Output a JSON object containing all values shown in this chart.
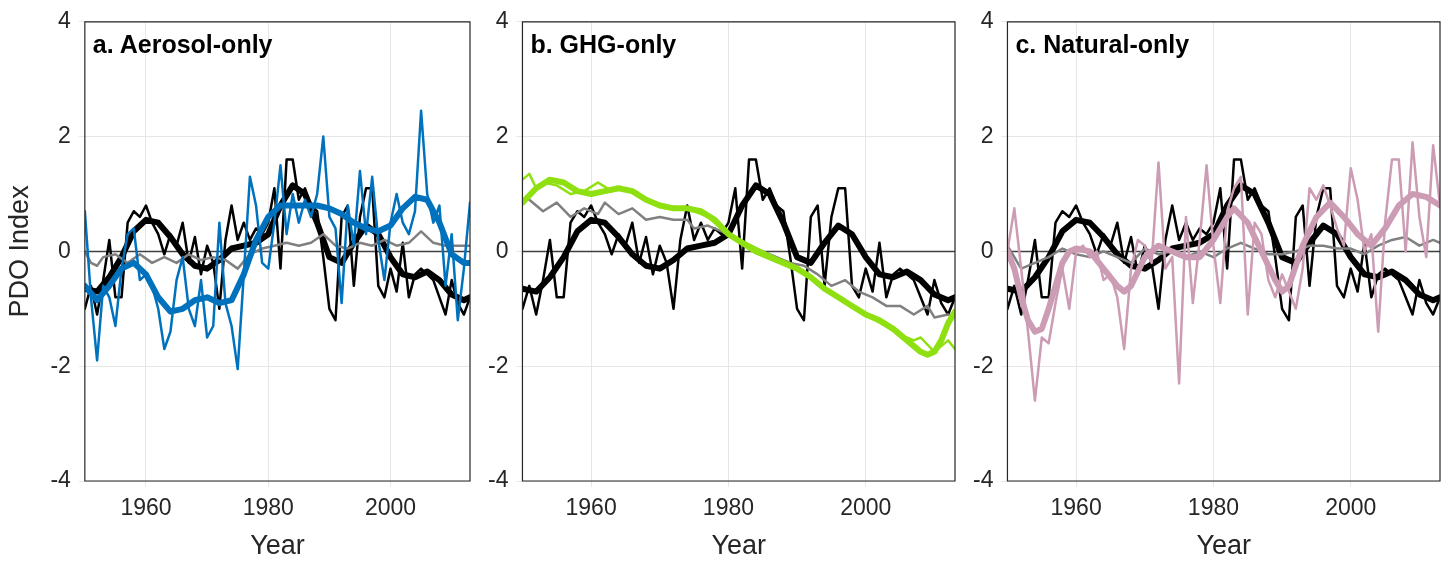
{
  "chart_data": [
    {
      "type": "line",
      "title": "a. Aerosol-only",
      "xlabel": "Year",
      "ylabel": "PDO Index",
      "x": [
        1950,
        1951,
        1952,
        1953,
        1954,
        1955,
        1956,
        1957,
        1958,
        1959,
        1960,
        1961,
        1962,
        1963,
        1964,
        1965,
        1966,
        1967,
        1968,
        1969,
        1970,
        1971,
        1972,
        1973,
        1974,
        1975,
        1976,
        1977,
        1978,
        1979,
        1980,
        1981,
        1982,
        1983,
        1984,
        1985,
        1986,
        1987,
        1988,
        1989,
        1990,
        1991,
        1992,
        1993,
        1994,
        1995,
        1996,
        1997,
        1998,
        1999,
        2000,
        2001,
        2002,
        2003,
        2004,
        2005,
        2006,
        2007,
        2008,
        2009,
        2010,
        2011,
        2012,
        2013
      ],
      "xlim": [
        1950,
        2013
      ],
      "xticks": [
        1960,
        1980,
        2000
      ],
      "ylim": [
        -4,
        4
      ],
      "yticks": [
        -4,
        -2,
        0,
        2,
        4
      ],
      "grid": true,
      "ref_lines": [
        {
          "axis": "y",
          "value": 0,
          "color": "#404040"
        }
      ],
      "series": [
        {
          "color": "#000000",
          "values": [
            -1.0,
            -0.6,
            -1.1,
            -0.5,
            0.2,
            -0.8,
            -0.8,
            0.5,
            0.7,
            0.6,
            0.8,
            0.5,
            0.3,
            -0.05,
            0.3,
            0.1,
            0.5,
            -0.2,
            0.25,
            -0.4,
            0.1,
            -0.2,
            -1.0,
            0.2,
            0.8,
            0.2,
            0.5,
            0.2,
            0.4,
            0.3,
            0.5,
            1.1,
            -0.3,
            1.6,
            1.6,
            0.9,
            1.1,
            0.8,
            0.7,
            -0.1,
            -1.0,
            -1.2,
            0.6,
            0.8,
            -0.6,
            0.6,
            1.1,
            1.1,
            -0.6,
            -0.8,
            -0.3,
            -0.7,
            0.15,
            -0.8,
            -0.4,
            -0.3,
            -0.4,
            -0.5,
            -0.8,
            -1.1,
            -0.5,
            -0.9,
            -1.1,
            -0.8
          ]
        },
        {
          "color": "#000000",
          "x": [
            1950,
            1952,
            1954,
            1956,
            1958,
            1960,
            1962,
            1964,
            1966,
            1968,
            1970,
            1972,
            1974,
            1976,
            1978,
            1980,
            1982,
            1984,
            1986,
            1988,
            1990,
            1992,
            1994,
            1996,
            1998,
            2000,
            2002,
            2004,
            2006,
            2008,
            2010,
            2012,
            2013
          ],
          "values": [
            -0.65,
            -0.7,
            -0.45,
            -0.1,
            0.35,
            0.55,
            0.5,
            0.25,
            -0.05,
            -0.25,
            -0.3,
            -0.15,
            0.05,
            0.1,
            0.15,
            0.3,
            0.8,
            1.15,
            1.0,
            0.5,
            -0.1,
            -0.2,
            0.15,
            0.45,
            0.3,
            -0.1,
            -0.4,
            -0.45,
            -0.35,
            -0.5,
            -0.75,
            -0.85,
            -0.8
          ]
        },
        {
          "color": "#808080",
          "x": [
            1950,
            1951,
            1952,
            1953,
            1955,
            1957,
            1959,
            1961,
            1963,
            1965,
            1967,
            1969,
            1971,
            1973,
            1975,
            1977,
            1979,
            1981,
            1983,
            1985,
            1987,
            1989,
            1991,
            1993,
            1995,
            1997,
            1999,
            2001,
            2003,
            2005,
            2007,
            2009,
            2011,
            2013
          ],
          "values": [
            0,
            -0.2,
            -0.25,
            -0.1,
            -0.05,
            -0.2,
            -0.05,
            -0.2,
            -0.1,
            -0.2,
            -0.05,
            -0.15,
            -0.1,
            -0.15,
            -0.3,
            -0.05,
            0.05,
            0.1,
            0.15,
            0.1,
            0.15,
            0.3,
            0.1,
            0.05,
            0.15,
            0.1,
            0.2,
            0.1,
            0.15,
            0.35,
            0.15,
            0.1,
            0.1,
            0.1
          ]
        },
        {
          "color": "#0072bd",
          "values": [
            0.7,
            -0.8,
            -1.9,
            -0.6,
            -0.8,
            -1.3,
            -0.3,
            0.3,
            0.4,
            -0.5,
            -0.4,
            -0.6,
            -1.0,
            -1.7,
            -1.4,
            -0.5,
            -0.1,
            -1.0,
            -1.3,
            -0.5,
            -1.5,
            -1.3,
            0.5,
            -0.9,
            -1.3,
            -2.05,
            -0.4,
            1.3,
            0.8,
            -0.2,
            -0.3,
            0.5,
            1.5,
            0.3,
            1.0,
            0.5,
            0.9,
            0.6,
            1.0,
            2.0,
            0.6,
            0.4,
            -0.9,
            0.8,
            0.1,
            1.4,
            0.3,
            1.3,
            0.2,
            -0.5,
            0.5,
            1.0,
            0.5,
            0.3,
            0.7,
            2.45,
            1.0,
            0.5,
            0.8,
            -0.6,
            0.3,
            -1.2,
            -0.3,
            0.85
          ]
        },
        {
          "color": "#0072bd",
          "x": [
            1950,
            1952,
            1954,
            1956,
            1958,
            1960,
            1962,
            1964,
            1966,
            1968,
            1970,
            1972,
            1974,
            1976,
            1978,
            1980,
            1982,
            1984,
            1986,
            1988,
            1990,
            1992,
            1994,
            1996,
            1998,
            2000,
            2002,
            2004,
            2006,
            2008,
            2010,
            2012,
            2013
          ],
          "values": [
            -0.6,
            -0.85,
            -0.6,
            -0.3,
            -0.2,
            -0.4,
            -0.8,
            -1.05,
            -1.0,
            -0.85,
            -0.8,
            -0.9,
            -0.85,
            -0.4,
            0.2,
            0.6,
            0.8,
            0.8,
            0.8,
            0.8,
            0.75,
            0.65,
            0.5,
            0.4,
            0.35,
            0.45,
            0.75,
            0.95,
            0.9,
            0.5,
            -0.05,
            -0.2,
            -0.2
          ]
        }
      ]
    },
    {
      "type": "line",
      "title": "b. GHG-only",
      "xlabel": "Year",
      "x": [
        1950,
        1951,
        1952,
        1953,
        1954,
        1955,
        1956,
        1957,
        1958,
        1959,
        1960,
        1961,
        1962,
        1963,
        1964,
        1965,
        1966,
        1967,
        1968,
        1969,
        1970,
        1971,
        1972,
        1973,
        1974,
        1975,
        1976,
        1977,
        1978,
        1979,
        1980,
        1981,
        1982,
        1983,
        1984,
        1985,
        1986,
        1987,
        1988,
        1989,
        1990,
        1991,
        1992,
        1993,
        1994,
        1995,
        1996,
        1997,
        1998,
        1999,
        2000,
        2001,
        2002,
        2003,
        2004,
        2005,
        2006,
        2007,
        2008,
        2009,
        2010,
        2011,
        2012,
        2013
      ],
      "xlim": [
        1950,
        2013
      ],
      "xticks": [
        1960,
        1980,
        2000
      ],
      "ylim": [
        -4,
        4
      ],
      "yticks": [
        -4,
        -2,
        0,
        2,
        4
      ],
      "grid": true,
      "ref_lines": [
        {
          "axis": "y",
          "value": 0,
          "color": "#404040"
        }
      ],
      "series": [
        {
          "color": "#000000",
          "values": [
            -1.0,
            -0.6,
            -1.1,
            -0.5,
            0.2,
            -0.8,
            -0.8,
            0.5,
            0.7,
            0.6,
            0.8,
            0.5,
            0.3,
            -0.05,
            0.3,
            0.1,
            0.5,
            -0.2,
            0.25,
            -0.4,
            0.1,
            -0.2,
            -1.0,
            0.2,
            0.8,
            0.2,
            0.5,
            0.2,
            0.4,
            0.3,
            0.5,
            1.1,
            -0.3,
            1.6,
            1.6,
            0.9,
            1.1,
            0.8,
            0.7,
            -0.1,
            -1.0,
            -1.2,
            0.6,
            0.8,
            -0.6,
            0.6,
            1.1,
            1.1,
            -0.6,
            -0.8,
            -0.3,
            -0.7,
            0.15,
            -0.8,
            -0.4,
            -0.3,
            -0.4,
            -0.5,
            -0.8,
            -1.1,
            -0.5,
            -0.9,
            -1.1,
            -0.8
          ]
        },
        {
          "color": "#000000",
          "x": [
            1950,
            1952,
            1954,
            1956,
            1958,
            1960,
            1962,
            1964,
            1966,
            1968,
            1970,
            1972,
            1974,
            1976,
            1978,
            1980,
            1982,
            1984,
            1986,
            1988,
            1990,
            1992,
            1994,
            1996,
            1998,
            2000,
            2002,
            2004,
            2006,
            2008,
            2010,
            2012,
            2013
          ],
          "values": [
            -0.65,
            -0.7,
            -0.45,
            -0.1,
            0.35,
            0.55,
            0.5,
            0.25,
            -0.05,
            -0.25,
            -0.3,
            -0.15,
            0.05,
            0.1,
            0.15,
            0.3,
            0.8,
            1.15,
            1.0,
            0.5,
            -0.1,
            -0.2,
            0.15,
            0.45,
            0.3,
            -0.1,
            -0.4,
            -0.45,
            -0.35,
            -0.5,
            -0.75,
            -0.85,
            -0.8
          ]
        },
        {
          "color": "#808080",
          "x": [
            1951,
            1953,
            1955,
            1957,
            1959,
            1961,
            1962,
            1964,
            1966,
            1968,
            1970,
            1972,
            1974,
            1975,
            1977,
            1979,
            1981,
            1983,
            1985,
            1987,
            1989,
            1991,
            1993,
            1995,
            1997,
            1999,
            2001,
            2003,
            2005,
            2007,
            2009,
            2010,
            2012,
            2013
          ],
          "values": [
            0.9,
            0.7,
            0.85,
            0.6,
            0.75,
            0.65,
            0.85,
            0.65,
            0.75,
            0.55,
            0.6,
            0.55,
            0.55,
            0.4,
            0.45,
            0.35,
            0.25,
            0.1,
            0,
            -0.1,
            -0.2,
            -0.25,
            -0.4,
            -0.6,
            -0.5,
            -0.7,
            -0.8,
            -0.95,
            -0.95,
            -1.1,
            -0.95,
            -1.15,
            -1.1,
            -1.15
          ]
        },
        {
          "color": "#8fe010",
          "x": [
            1950,
            1951,
            1952,
            1953,
            1955,
            1957,
            1959,
            1961,
            1963,
            1965,
            1967,
            1970,
            1974,
            1977,
            1980,
            1985,
            1990,
            1995,
            2000,
            2005,
            2007,
            2008,
            2010,
            2012,
            2013
          ],
          "values": [
            1.25,
            1.35,
            1.1,
            1.2,
            1.15,
            1.0,
            1.05,
            1.2,
            1.05,
            1.1,
            0.95,
            0.8,
            0.75,
            0.6,
            0.3,
            0,
            -0.3,
            -0.75,
            -1.1,
            -1.45,
            -1.55,
            -1.5,
            -1.75,
            -1.55,
            -1.7
          ]
        },
        {
          "color": "#8fe010",
          "x": [
            1950,
            1952,
            1954,
            1956,
            1958,
            1960,
            1962,
            1964,
            1966,
            1968,
            1970,
            1972,
            1974,
            1976,
            1978,
            1980,
            1982,
            1984,
            1986,
            1988,
            1990,
            1992,
            1994,
            1996,
            1998,
            2000,
            2002,
            2004,
            2006,
            2008,
            2009,
            2010,
            2011,
            2012,
            2013
          ],
          "values": [
            0.85,
            1.1,
            1.25,
            1.2,
            1.05,
            1.0,
            1.05,
            1.1,
            1.05,
            0.9,
            0.8,
            0.75,
            0.75,
            0.7,
            0.55,
            0.3,
            0.15,
            0,
            -0.1,
            -0.2,
            -0.3,
            -0.45,
            -0.65,
            -0.8,
            -0.95,
            -1.1,
            -1.2,
            -1.35,
            -1.55,
            -1.75,
            -1.8,
            -1.75,
            -1.55,
            -1.25,
            -1.05
          ]
        }
      ]
    },
    {
      "type": "line",
      "title": "c. Natural-only",
      "xlabel": "Year",
      "x": [
        1950,
        1951,
        1952,
        1953,
        1954,
        1955,
        1956,
        1957,
        1958,
        1959,
        1960,
        1961,
        1962,
        1963,
        1964,
        1965,
        1966,
        1967,
        1968,
        1969,
        1970,
        1971,
        1972,
        1973,
        1974,
        1975,
        1976,
        1977,
        1978,
        1979,
        1980,
        1981,
        1982,
        1983,
        1984,
        1985,
        1986,
        1987,
        1988,
        1989,
        1990,
        1991,
        1992,
        1993,
        1994,
        1995,
        1996,
        1997,
        1998,
        1999,
        2000,
        2001,
        2002,
        2003,
        2004,
        2005,
        2006,
        2007,
        2008,
        2009,
        2010,
        2011,
        2012,
        2013
      ],
      "xlim": [
        1950,
        2013
      ],
      "xticks": [
        1960,
        1980,
        2000
      ],
      "ylim": [
        -4,
        4
      ],
      "yticks": [
        -4,
        -2,
        0,
        2,
        4
      ],
      "grid": true,
      "ref_lines": [
        {
          "axis": "y",
          "value": 0,
          "color": "#404040"
        }
      ],
      "series": [
        {
          "color": "#000000",
          "values": [
            -1.0,
            -0.6,
            -1.1,
            -0.5,
            0.2,
            -0.8,
            -0.8,
            0.5,
            0.7,
            0.6,
            0.8,
            0.5,
            0.3,
            -0.05,
            0.3,
            0.1,
            0.5,
            -0.2,
            0.25,
            -0.4,
            0.1,
            -0.2,
            -1.0,
            0.2,
            0.8,
            0.2,
            0.5,
            0.2,
            0.4,
            0.3,
            0.5,
            1.1,
            -0.3,
            1.6,
            1.6,
            0.9,
            1.1,
            0.8,
            0.7,
            -0.1,
            -1.0,
            -1.2,
            0.6,
            0.8,
            -0.6,
            0.6,
            1.1,
            1.1,
            -0.6,
            -0.8,
            -0.3,
            -0.7,
            0.15,
            -0.8,
            -0.4,
            -0.3,
            -0.4,
            -0.5,
            -0.8,
            -1.1,
            -0.5,
            -0.9,
            -1.1,
            -0.8
          ]
        },
        {
          "color": "#000000",
          "x": [
            1950,
            1952,
            1954,
            1956,
            1958,
            1960,
            1962,
            1964,
            1966,
            1968,
            1970,
            1972,
            1974,
            1976,
            1978,
            1980,
            1982,
            1984,
            1986,
            1988,
            1990,
            1992,
            1994,
            1996,
            1998,
            2000,
            2002,
            2004,
            2006,
            2008,
            2010,
            2012,
            2013
          ],
          "values": [
            -0.65,
            -0.7,
            -0.45,
            -0.1,
            0.35,
            0.55,
            0.5,
            0.25,
            -0.05,
            -0.25,
            -0.3,
            -0.15,
            0.05,
            0.1,
            0.15,
            0.3,
            0.8,
            1.15,
            1.0,
            0.5,
            -0.1,
            -0.2,
            0.15,
            0.45,
            0.3,
            -0.1,
            -0.4,
            -0.45,
            -0.35,
            -0.5,
            -0.75,
            -0.85,
            -0.8
          ]
        },
        {
          "color": "#808080",
          "x": [
            1950,
            1952,
            1954,
            1956,
            1958,
            1960,
            1962,
            1964,
            1966,
            1968,
            1970,
            1972,
            1974,
            1976,
            1978,
            1980,
            1982,
            1984,
            1986,
            1988,
            1990,
            1992,
            1994,
            1996,
            1998,
            2000,
            2002,
            2004,
            2006,
            2008,
            2010,
            2012,
            2013
          ],
          "values": [
            0.1,
            -0.3,
            -0.2,
            -0.1,
            0.05,
            -0.05,
            -0.1,
            0,
            -0.1,
            -0.2,
            0.05,
            -0.05,
            0,
            -0.1,
            0,
            -0.1,
            0.05,
            0.15,
            0.05,
            -0.05,
            -0.05,
            0,
            0.1,
            0.1,
            0.05,
            0.05,
            -0.05,
            0.1,
            0.2,
            0.25,
            0.1,
            0.2,
            0.15
          ]
        },
        {
          "color": "#cc9bb4",
          "values": [
            0.0,
            0.75,
            -0.3,
            -1.4,
            -2.6,
            -1.5,
            -1.6,
            -0.9,
            -0.3,
            -1.0,
            0.0,
            0.1,
            -0.1,
            0.0,
            -0.5,
            -0.4,
            -0.8,
            -1.7,
            -0.3,
            0.2,
            0.1,
            -0.2,
            1.55,
            -0.3,
            -0.1,
            -2.3,
            0.6,
            -0.9,
            0.2,
            1.5,
            0.1,
            -0.9,
            0.7,
            1.1,
            1.3,
            -1.1,
            0.5,
            0.3,
            -0.5,
            -0.8,
            -0.4,
            -0.7,
            -1.0,
            -0.3,
            1.1,
            0.9,
            1.15,
            0.8,
            0.4,
            0.1,
            1.45,
            0.9,
            0.0,
            0.3,
            -1.4,
            0.5,
            1.6,
            1.6,
            0.0,
            1.9,
            0.6,
            -0.1,
            1.85,
            0.8
          ]
        },
        {
          "color": "#cc9bb4",
          "x": [
            1950,
            1951,
            1952,
            1953,
            1954,
            1955,
            1956,
            1957,
            1958,
            1959,
            1960,
            1962,
            1964,
            1966,
            1967,
            1968,
            1970,
            1972,
            1974,
            1976,
            1978,
            1980,
            1982,
            1983,
            1985,
            1987,
            1989,
            1990,
            1991,
            1993,
            1995,
            1997,
            1999,
            2001,
            2003,
            2005,
            2007,
            2009,
            2011,
            2013
          ],
          "values": [
            0,
            -0.3,
            -0.8,
            -1.2,
            -1.4,
            -1.35,
            -1.0,
            -0.6,
            -0.2,
            0.0,
            0.05,
            0.0,
            -0.3,
            -0.6,
            -0.7,
            -0.6,
            -0.1,
            0.1,
            0.0,
            -0.1,
            -0.1,
            0.2,
            0.6,
            0.75,
            0.5,
            0.0,
            -0.5,
            -0.7,
            -0.6,
            0.1,
            0.6,
            0.85,
            0.6,
            0.3,
            0.1,
            0.4,
            0.8,
            1.0,
            0.95,
            0.8
          ]
        }
      ]
    }
  ]
}
